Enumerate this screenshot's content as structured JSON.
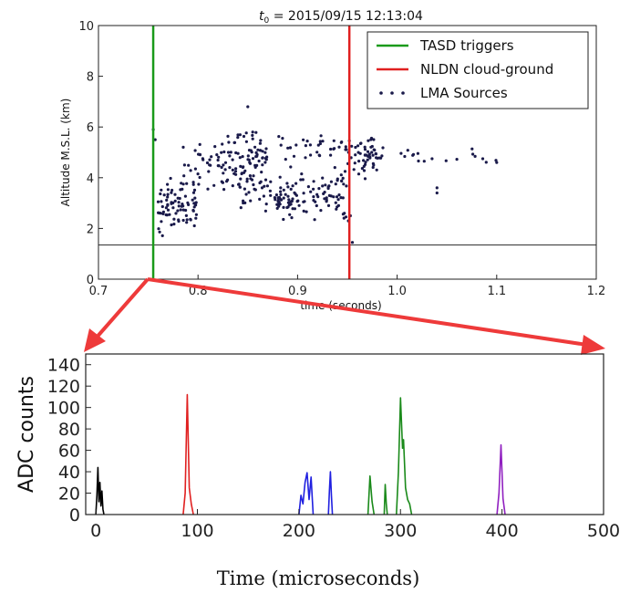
{
  "chart_data": [
    {
      "type": "scatter",
      "title": "t0 = 2015/09/15 12:13:04",
      "title_sub": "0",
      "title_prefix": "t",
      "title_rest": " = 2015/09/15 12:13:04",
      "xlabel": "time (seconds)",
      "ylabel": "Altitude M.S.L. (km)",
      "xlim": [
        0.7,
        1.2
      ],
      "ylim": [
        0,
        10
      ],
      "xticks": [
        "0.7",
        "0.8",
        "0.9",
        "1.0",
        "1.1",
        "1.2"
      ],
      "yticks": [
        "0",
        "2",
        "4",
        "6",
        "8",
        "10"
      ],
      "legend": {
        "placement": "top-right",
        "entries": [
          "TASD triggers",
          "NLDN cloud-ground",
          "LMA Sources"
        ]
      },
      "colors": {
        "tasd": "#1a9a1a",
        "nldn": "#e02020",
        "lma": "#1a1a4a"
      },
      "tasd_trigger_time": 0.755,
      "nldn_time": 0.952,
      "ground_level_km": 1.35,
      "lma_clusters": [
        {
          "x": [
            0.76,
            0.8
          ],
          "y": [
            1.6,
            4.0
          ],
          "n": 80
        },
        {
          "x": [
            0.78,
            0.83
          ],
          "y": [
            3.4,
            5.5
          ],
          "n": 45
        },
        {
          "x": [
            0.83,
            0.87
          ],
          "y": [
            3.5,
            6.0
          ],
          "n": 80
        },
        {
          "x": [
            0.84,
            0.9
          ],
          "y": [
            2.6,
            4.0
          ],
          "n": 50
        },
        {
          "x": [
            0.88,
            0.95
          ],
          "y": [
            2.2,
            4.6
          ],
          "n": 90
        },
        {
          "x": [
            0.88,
            0.96
          ],
          "y": [
            4.6,
            5.7
          ],
          "n": 35
        },
        {
          "x": [
            0.95,
            0.98
          ],
          "y": [
            3.8,
            6.0
          ],
          "n": 50
        },
        {
          "x": [
            0.98,
            1.1
          ],
          "y": [
            4.4,
            5.3
          ],
          "n": 22
        }
      ],
      "lma_extra_points": [
        {
          "x": 0.755,
          "y": 5.9
        },
        {
          "x": 0.757,
          "y": 5.5
        },
        {
          "x": 0.85,
          "y": 6.8
        },
        {
          "x": 0.955,
          "y": 1.45
        },
        {
          "x": 1.04,
          "y": 3.6
        },
        {
          "x": 1.04,
          "y": 3.4
        },
        {
          "x": 0.953,
          "y": 2.5
        },
        {
          "x": 0.951,
          "y": 2.3
        },
        {
          "x": 1.1,
          "y": 4.6
        }
      ]
    },
    {
      "type": "line",
      "xlabel": "Time (microseconds)",
      "ylabel": "ADC counts",
      "xlim": [
        -10,
        500
      ],
      "ylim": [
        0,
        150
      ],
      "xticks": [
        "0",
        "100",
        "200",
        "300",
        "400",
        "500"
      ],
      "yticks": [
        "0",
        "20",
        "40",
        "60",
        "80",
        "100",
        "120",
        "140"
      ],
      "pulses": [
        {
          "color": "#000000",
          "x": [
            0,
            1,
            2,
            3,
            4,
            5,
            6,
            7,
            8
          ],
          "y": [
            0,
            18,
            44,
            12,
            30,
            8,
            22,
            5,
            0
          ]
        },
        {
          "color": "#e02020",
          "x": [
            86,
            88,
            90,
            92,
            94,
            96
          ],
          "y": [
            0,
            20,
            112,
            25,
            10,
            0
          ]
        },
        {
          "color": "#2020e0",
          "x": [
            200,
            202,
            204,
            206,
            208,
            210,
            212,
            214
          ],
          "y": [
            0,
            18,
            10,
            30,
            39,
            14,
            35,
            0
          ]
        },
        {
          "color": "#2020e0",
          "x": [
            229,
            230,
            231,
            232,
            233
          ],
          "y": [
            0,
            22,
            40,
            18,
            0
          ]
        },
        {
          "color": "#1a8a1a",
          "x": [
            268,
            270,
            272,
            274
          ],
          "y": [
            0,
            36,
            12,
            0
          ]
        },
        {
          "color": "#1a8a1a",
          "x": [
            284,
            285,
            286,
            287
          ],
          "y": [
            0,
            28,
            10,
            0
          ]
        },
        {
          "color": "#1a8a1a",
          "x": [
            296,
            298,
            300,
            302,
            303,
            305,
            307,
            309,
            311
          ],
          "y": [
            0,
            40,
            109,
            62,
            70,
            25,
            14,
            10,
            0
          ]
        },
        {
          "color": "#9020c0",
          "x": [
            395,
            397,
            399,
            401,
            403
          ],
          "y": [
            0,
            20,
            65,
            15,
            0
          ]
        }
      ]
    }
  ]
}
